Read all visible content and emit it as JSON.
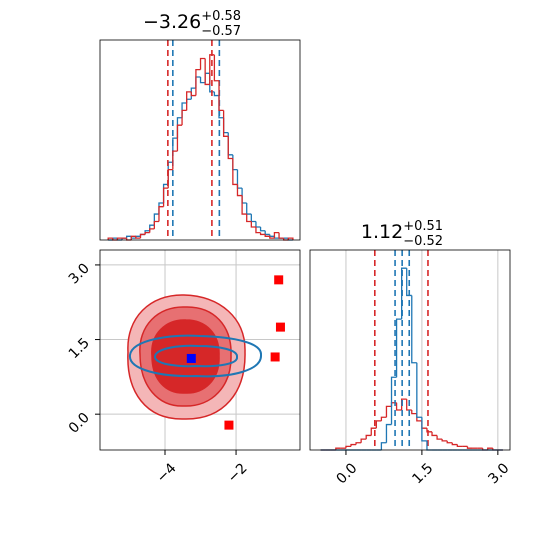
{
  "chart_data": [
    {
      "type": "histogram",
      "title": {
        "text": "−3.26",
        "upper": "+0.58",
        "lower": "−0.57"
      },
      "xlim": [
        -5.83,
        -0.2
      ],
      "ylim": [
        0,
        108
      ],
      "grid": false,
      "bins": [
        -5.6,
        -5.47,
        -5.34,
        -5.21,
        -5.08,
        -4.95,
        -4.82,
        -4.69,
        -4.56,
        -4.43,
        -4.3,
        -4.17,
        -4.04,
        -3.91,
        -3.78,
        -3.65,
        -3.52,
        -3.39,
        -3.26,
        -3.13,
        -3.0,
        -2.87,
        -2.74,
        -2.61,
        -2.48,
        -2.35,
        -2.22,
        -2.09,
        -1.96,
        -1.83,
        -1.7,
        -1.57,
        -1.44,
        -1.31,
        -1.18,
        -1.05,
        -0.92,
        -0.79,
        -0.66,
        -0.53,
        -0.4
      ],
      "series": [
        {
          "color": "#1f77b4",
          "values": [
            0,
            1,
            0,
            1,
            2,
            1,
            2,
            3,
            5,
            8,
            14,
            20,
            30,
            42,
            55,
            66,
            74,
            76,
            82,
            88,
            85,
            90,
            80,
            78,
            66,
            58,
            46,
            38,
            28,
            20,
            14,
            10,
            7,
            5,
            3,
            2,
            1,
            1,
            1,
            0
          ],
          "quantiles": [
            -3.78,
            -2.47
          ]
        },
        {
          "color": "#d62728",
          "values": [
            1,
            0,
            1,
            1,
            0,
            2,
            1,
            3,
            4,
            6,
            10,
            18,
            28,
            38,
            48,
            62,
            70,
            80,
            78,
            92,
            98,
            84,
            100,
            86,
            70,
            56,
            44,
            30,
            24,
            14,
            10,
            7,
            4,
            3,
            2,
            1,
            4,
            1,
            0,
            1
          ],
          "quantiles": [
            -3.92,
            -2.68
          ]
        }
      ]
    },
    {
      "type": "scatter",
      "xlim": [
        -5.83,
        -0.2
      ],
      "ylim": [
        -0.72,
        3.3
      ],
      "grid": true,
      "xticks": [
        {
          "value": -4,
          "label": "−4"
        },
        {
          "value": -2,
          "label": "−2"
        }
      ],
      "yticks": [
        {
          "value": 0,
          "label": "0.0"
        },
        {
          "value": 1.5,
          "label": "1.5"
        },
        {
          "value": 3,
          "label": "3.0"
        }
      ],
      "series": [
        {
          "color": "#ff0000",
          "marker": "square",
          "x": [
            -0.8,
            -0.75,
            -0.9,
            -2.2
          ],
          "y": [
            2.7,
            1.75,
            1.15,
            -0.22
          ]
        },
        {
          "color": "#0000ff",
          "marker": "square",
          "x": [
            -3.26
          ],
          "y": [
            1.12
          ]
        }
      ]
    },
    {
      "type": "histogram",
      "title": {
        "text": "1.12",
        "upper": "+0.51",
        "lower": "−0.52"
      },
      "xlim": [
        -0.71,
        3.24
      ],
      "ylim": [
        0,
        110
      ],
      "grid": true,
      "xticks": [
        {
          "value": 0,
          "label": "0.0"
        },
        {
          "value": 1.5,
          "label": "1.5"
        },
        {
          "value": 3,
          "label": "3.0"
        }
      ],
      "bins": [
        -0.5,
        -0.4,
        -0.3,
        -0.2,
        -0.1,
        0.0,
        0.1,
        0.2,
        0.3,
        0.4,
        0.5,
        0.6,
        0.7,
        0.8,
        0.9,
        1.0,
        1.1,
        1.2,
        1.3,
        1.4,
        1.5,
        1.6,
        1.7,
        1.8,
        1.9,
        2.0,
        2.1,
        2.2,
        2.3,
        2.4,
        2.5,
        2.6,
        2.7,
        2.8,
        2.9,
        3.0,
        3.1
      ],
      "series": [
        {
          "color": "#d62728",
          "values": [
            0,
            0,
            0,
            1,
            1,
            2,
            3,
            4,
            6,
            8,
            12,
            16,
            18,
            24,
            26,
            22,
            28,
            22,
            20,
            16,
            12,
            10,
            8,
            6,
            5,
            4,
            3,
            2,
            2,
            1,
            1,
            1,
            0,
            1,
            0,
            0
          ],
          "quantiles": [
            0.57,
            1.62
          ]
        },
        {
          "color": "#1f77b4",
          "values": [
            0,
            0,
            0,
            0,
            0,
            0,
            0,
            0,
            0,
            0,
            0,
            0,
            4,
            14,
            40,
            72,
            100,
            85,
            48,
            18,
            5,
            0,
            0,
            0,
            0,
            0,
            0,
            0,
            0,
            0,
            0,
            0,
            0,
            0,
            0,
            0
          ],
          "quantiles": [
            0.97,
            1.11,
            1.25
          ]
        }
      ]
    }
  ]
}
